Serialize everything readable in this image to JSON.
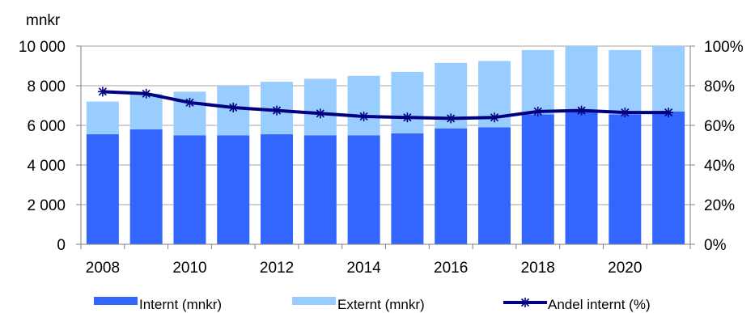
{
  "chart_data": {
    "type": "bar",
    "stacked": true,
    "x": [
      2008,
      2009,
      2010,
      2011,
      2012,
      2013,
      2014,
      2015,
      2016,
      2017,
      2018,
      2019,
      2020,
      2021
    ],
    "series": [
      {
        "name": "Internt (mnkr)",
        "type": "bar",
        "axis": "left",
        "color": "#3366ff",
        "values": [
          5550,
          5800,
          5500,
          5500,
          5550,
          5500,
          5500,
          5600,
          5850,
          5900,
          6550,
          6700,
          6550,
          6700
        ]
      },
      {
        "name": "Externt (mnkr)",
        "type": "bar",
        "axis": "left",
        "color": "#99ccff",
        "values": [
          1650,
          1800,
          2200,
          2500,
          2650,
          2850,
          3000,
          3100,
          3300,
          3350,
          3250,
          3300,
          3250,
          3300
        ]
      },
      {
        "name": "Andel internt (%)",
        "type": "line",
        "axis": "right",
        "color": "#000080",
        "marker": "star",
        "values": [
          77,
          76,
          71.5,
          69,
          67.5,
          66,
          64.5,
          64,
          63.5,
          64,
          67,
          67.5,
          66.5,
          66.5
        ]
      }
    ],
    "ylabel": "mnkr",
    "ylim": [
      0,
      10000
    ],
    "y_ticks": [
      "0",
      "2 000",
      "4 000",
      "6 000",
      "8 000",
      "10 000"
    ],
    "y2lim": [
      0,
      100
    ],
    "y2_ticks": [
      "0%",
      "20%",
      "40%",
      "60%",
      "80%",
      "100%"
    ],
    "x_ticks": [
      "2008",
      "2010",
      "2012",
      "2014",
      "2016",
      "2018",
      "2020"
    ],
    "grid": true,
    "legend_position": "bottom"
  }
}
